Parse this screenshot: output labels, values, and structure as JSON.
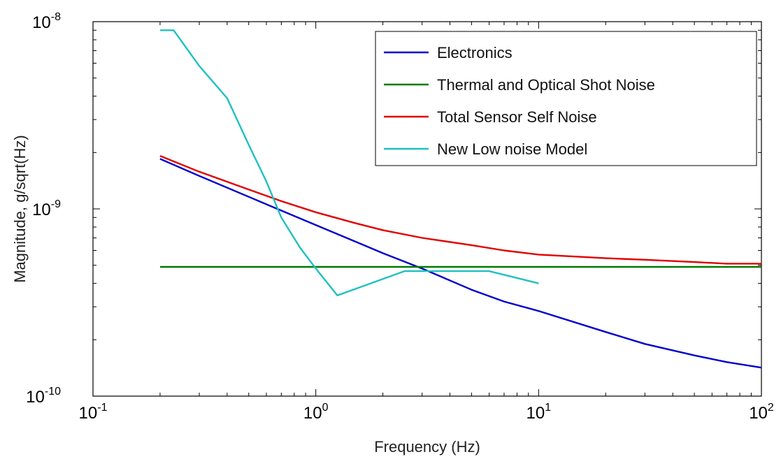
{
  "chart_data": {
    "type": "line",
    "title": "",
    "xlabel": "Frequency (Hz)",
    "ylabel": "Magnitude, g/sqrt(Hz)",
    "xscale": "log",
    "yscale": "log",
    "xlim": [
      0.1,
      100
    ],
    "ylim": [
      1e-10,
      1e-08
    ],
    "x_ticks": [
      {
        "value": 0.1,
        "base": "10",
        "exp": "-1"
      },
      {
        "value": 1,
        "base": "10",
        "exp": "0"
      },
      {
        "value": 10,
        "base": "10",
        "exp": "1"
      },
      {
        "value": 100,
        "base": "10",
        "exp": "2"
      }
    ],
    "y_ticks": [
      {
        "value": 1e-10,
        "base": "10",
        "exp": "-10"
      },
      {
        "value": 1e-09,
        "base": "10",
        "exp": "-9"
      },
      {
        "value": 1e-08,
        "base": "10",
        "exp": "-8"
      }
    ],
    "grid": false,
    "legend_position": "top-right",
    "series": [
      {
        "name": "Electronics",
        "color": "#0000cc",
        "x": [
          0.2,
          0.3,
          0.5,
          0.7,
          1,
          1.5,
          2,
          3,
          5,
          7,
          10,
          20,
          30,
          50,
          70,
          100
        ],
        "y": [
          1.85e-09,
          1.5e-09,
          1.16e-09,
          9.8e-10,
          8.2e-10,
          6.7e-10,
          5.8e-10,
          4.8e-10,
          3.7e-10,
          3.2e-10,
          2.85e-10,
          2.2e-10,
          1.9e-10,
          1.65e-10,
          1.52e-10,
          1.42e-10
        ]
      },
      {
        "name": "Thermal and Optical Shot Noise",
        "color": "#007a00",
        "x": [
          0.2,
          100
        ],
        "y": [
          4.9e-10,
          4.9e-10
        ]
      },
      {
        "name": "Total Sensor Self Noise",
        "color": "#e00000",
        "x": [
          0.2,
          0.3,
          0.5,
          0.7,
          1,
          1.5,
          2,
          3,
          5,
          7,
          10,
          20,
          30,
          50,
          70,
          100
        ],
        "y": [
          1.92e-09,
          1.58e-09,
          1.27e-09,
          1.1e-09,
          9.6e-10,
          8.4e-10,
          7.7e-10,
          7e-10,
          6.4e-10,
          6e-10,
          5.7e-10,
          5.45e-10,
          5.35e-10,
          5.2e-10,
          5.1e-10,
          5.1e-10
        ]
      },
      {
        "name": "New Low noise Model",
        "color": "#1fc0c0",
        "x": [
          0.2,
          0.23,
          0.3,
          0.4,
          0.5,
          0.6,
          0.7,
          0.85,
          1,
          1.25,
          2.5,
          6,
          10
        ],
        "y": [
          9e-09,
          9e-09,
          5.8e-09,
          3.9e-09,
          2.2e-09,
          1.4e-09,
          9e-10,
          6.2e-10,
          4.8e-10,
          3.45e-10,
          4.65e-10,
          4.65e-10,
          4e-10
        ]
      }
    ]
  }
}
